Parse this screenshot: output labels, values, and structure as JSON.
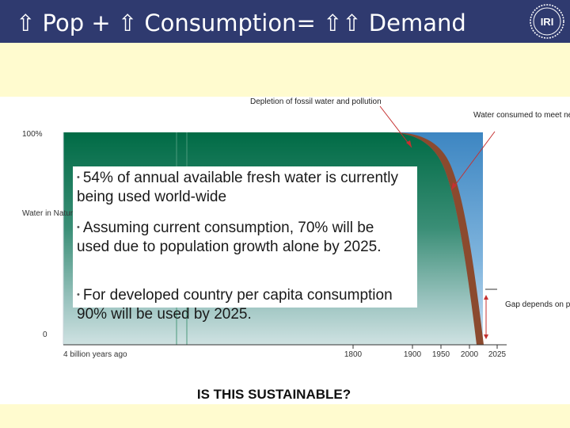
{
  "header": {
    "title": "⇧ Pop + ⇧ Consumption= ⇧⇧ Demand",
    "logo_text": "IRI",
    "background": "#2f3a6f"
  },
  "bullets": [
    "54% of annual available fresh water is currently being used world-wide",
    "Assuming current consumption, 70% will be used due to population growth alone by 2025.",
    "For developed country per capita consumption 90% will be used by 2025."
  ],
  "chart_data": {
    "type": "area",
    "title": "IS THIS SUSTAINABLE?",
    "ylabel": "Water in Nature",
    "y_ticks": [
      "100%",
      "0"
    ],
    "x_ticks": [
      "4 billion years ago",
      "1800",
      "1900",
      "1950",
      "2000",
      "2025"
    ],
    "annotations": [
      "Depletion of fossil water and pollution",
      "Water consumed to meet needs of man",
      "Gap depends on place and time"
    ],
    "series": [
      {
        "name": "Water in nature",
        "color": "#0e7a52"
      },
      {
        "name": "Water consumed to meet needs of man",
        "color": "#3d8cc4"
      },
      {
        "name": "Depletion of fossil water and pollution",
        "color": "#8b4a2e"
      }
    ]
  }
}
